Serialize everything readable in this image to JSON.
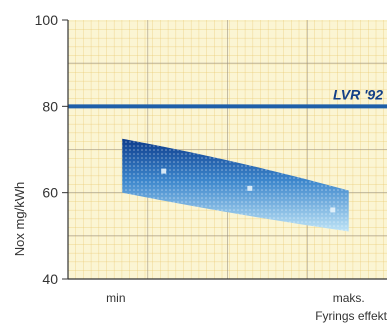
{
  "chart_data": {
    "type": "area",
    "title": "",
    "ylabel": "Nox mg/kWh",
    "xlabel": "Fyrings effekt",
    "ylim": [
      40,
      100
    ],
    "yticks": [
      40,
      60,
      80,
      100
    ],
    "x_tick_labels": [
      {
        "label": "min",
        "x": 0.15
      },
      {
        "label": "maks.",
        "x": 0.88
      }
    ],
    "grid": true,
    "reference_line": {
      "label": "LVR '92",
      "y": 80,
      "color": "#1e5fa8"
    },
    "band": {
      "x": [
        0.17,
        0.88
      ],
      "upper": [
        72.5,
        60.5
      ],
      "lower": [
        60,
        51
      ],
      "color_top": "#0d3c8c",
      "color_bottom": "#bfe4f6"
    },
    "markers": [
      {
        "x": 0.3,
        "y": 65
      },
      {
        "x": 0.57,
        "y": 61
      },
      {
        "x": 0.83,
        "y": 56
      }
    ],
    "colors": {
      "background": "#fbf5d3",
      "grid": "#e9c76e",
      "line": "#1e5fa8"
    }
  }
}
